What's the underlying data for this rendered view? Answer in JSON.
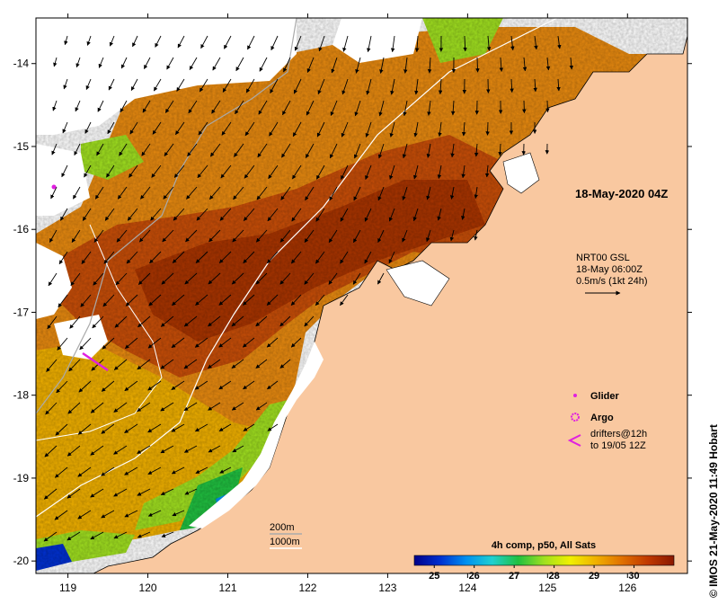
{
  "map": {
    "date_label": "18-May-2020 04Z",
    "current_source": "NRT00 GSL",
    "current_time": "18-May 06:00Z",
    "scale_arrow_label": "0.5m/s (1kt 24h)",
    "credit": "© IMOS 21-May-2020 11:49 Hobart",
    "lon_ticks": [
      "119",
      "120",
      "121",
      "122",
      "123",
      "124",
      "125",
      "126"
    ],
    "lat_ticks": [
      "-14",
      "-15",
      "-16",
      "-17",
      "-18",
      "-19",
      "-20"
    ],
    "lon_range": [
      118.6,
      126.75
    ],
    "lat_range": [
      -20.15,
      -13.45
    ],
    "contour_labels": [
      "200m",
      "1000m"
    ],
    "contour_colors": {
      "200m": "#aaaaaa",
      "1000m": "#ffffff"
    },
    "land_color": "#f9c8a0",
    "legend": [
      {
        "symbol": "glider-dot",
        "label": "Glider",
        "color": "#e020e0"
      },
      {
        "symbol": "argo-dot",
        "label": "Argo",
        "color": "#e020e0"
      },
      {
        "symbol": "drifter-chevron",
        "label": "drifters@12h\nto 19/05 12Z",
        "color": "#e020e0"
      }
    ],
    "colorbar": {
      "title": "4h comp, p50, All Sats",
      "ticks": [
        "25",
        "26",
        "27",
        "28",
        "29",
        "30"
      ],
      "range": [
        24.5,
        31
      ],
      "colors": [
        "#00008a",
        "#0030d0",
        "#0090f0",
        "#20d0d0",
        "#20c040",
        "#a0e020",
        "#f0f000",
        "#f0b000",
        "#e07000",
        "#c03800",
        "#8a1800"
      ]
    }
  }
}
